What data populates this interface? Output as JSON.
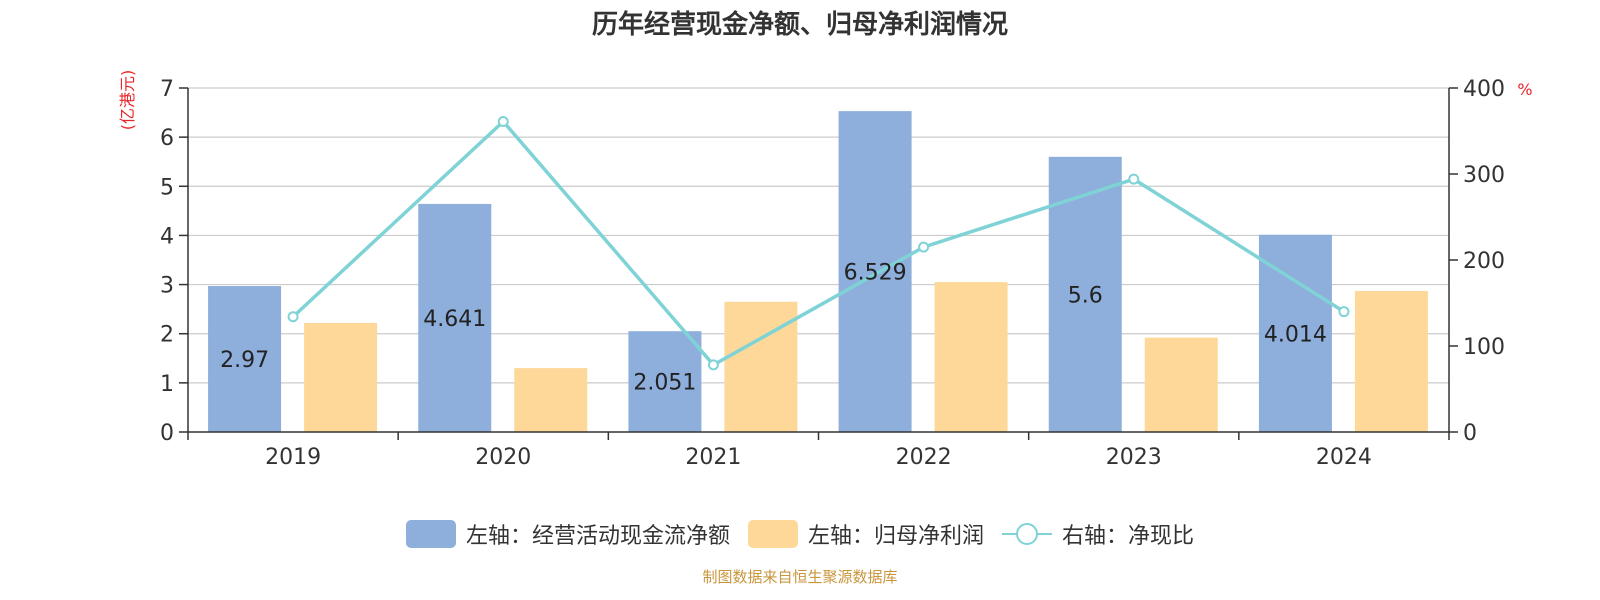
{
  "title": "历年经营现金净额、归母净利润情况",
  "source": "制图数据来自恒生聚源数据库",
  "colors": {
    "cash": "#8eaedb",
    "profit": "#fed899",
    "ratio": "#7fd3d6",
    "axis_unit": "#e8262a"
  },
  "legend": {
    "cash": "左轴：经营活动现金流净额",
    "profit": "左轴：归母净利润",
    "ratio": "右轴：净现比"
  },
  "chart_data": {
    "type": "bar",
    "title": "历年经营现金净额、归母净利润情况",
    "categories": [
      "2019",
      "2020",
      "2021",
      "2022",
      "2023",
      "2024"
    ],
    "y_left": {
      "label": "亿港元",
      "ylim": [
        0,
        7
      ],
      "ticks": [
        0,
        1,
        2,
        3,
        4,
        5,
        6,
        7
      ]
    },
    "y_right": {
      "label": "%",
      "ylim": [
        0,
        400
      ],
      "ticks": [
        0,
        100,
        200,
        300,
        400
      ]
    },
    "series": [
      {
        "name": "左轴：经营活动现金流净额",
        "type": "bar",
        "axis": "left",
        "values": [
          2.97,
          4.641,
          2.051,
          6.529,
          5.6,
          4.014
        ],
        "labels": [
          "2.97",
          "4.641",
          "2.051",
          "6.529",
          "5.6",
          "4.014"
        ]
      },
      {
        "name": "左轴：归母净利润",
        "type": "bar",
        "axis": "left",
        "values": [
          2.22,
          1.3,
          2.65,
          3.05,
          1.92,
          2.87
        ]
      },
      {
        "name": "右轴：净现比",
        "type": "line",
        "axis": "right",
        "values": [
          134,
          361,
          78,
          215,
          294,
          140
        ]
      }
    ],
    "grid": true,
    "legend_position": "bottom"
  }
}
